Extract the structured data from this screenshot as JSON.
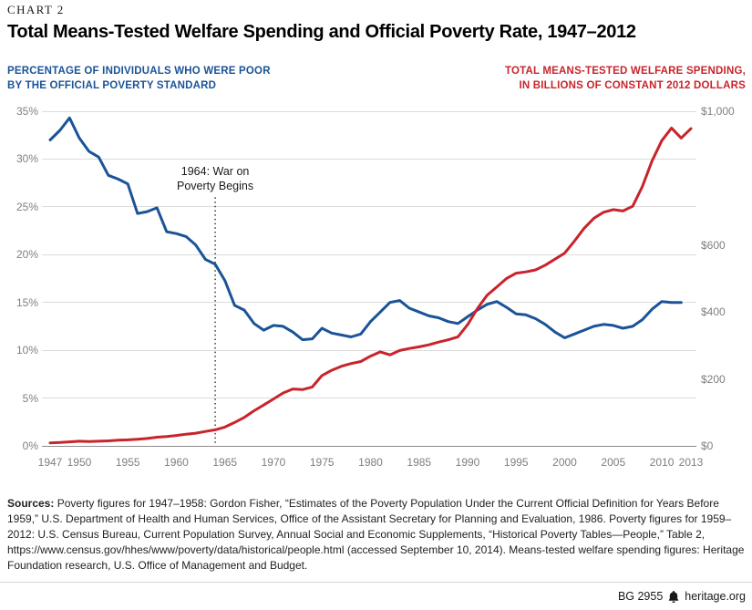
{
  "page": {
    "kicker": "CHART 2",
    "title": "Total Means-Tested Welfare Spending and Official Poverty Rate, 1947–2012",
    "sources_label": "Sources:",
    "sources_text": "Poverty figures for 1947–1958: Gordon Fisher, “Estimates of the Poverty Population Under the Current Official Definition for Years Before 1959,” U.S. Department of Health and Human Services, Office of the Assistant Secretary for Planning and Evaluation, 1986. Poverty figures for 1959–2012: U.S. Census Bureau, Current Population Survey, Annual Social and Economic Supplements, “Historical Poverty Tables—People,” Table 2, https://www.census.gov/hhes/www/poverty/data/historical/people.html (accessed September 10, 2014). Means-tested welfare spending figures: Heritage Foundation research, U.S. Office of Management and Budget.",
    "footer": {
      "doc_id": "BG 2955",
      "site": "heritage.org",
      "logo_icon": "heritage-bell-icon"
    }
  },
  "chart_data": {
    "type": "line",
    "title": "Total Means-Tested Welfare Spending and Official Poverty Rate, 1947–2012",
    "grid": true,
    "legend_position": "axis-colored-titles",
    "left_axis": {
      "title": "PERCENTAGE OF INDIVIDUALS WHO WERE POOR\nBY THE OFFICIAL POVERTY STANDARD",
      "min": 0,
      "max": 35,
      "color": "#1A5398",
      "ticks": [
        {
          "value": 35,
          "label": "35%"
        },
        {
          "value": 30,
          "label": "30%"
        },
        {
          "value": 25,
          "label": "25%"
        },
        {
          "value": 20,
          "label": "20%"
        },
        {
          "value": 15,
          "label": "15%"
        },
        {
          "value": 10,
          "label": "10%"
        },
        {
          "value": 5,
          "label": "5%"
        },
        {
          "value": 0,
          "label": "0%"
        }
      ]
    },
    "right_axis": {
      "title": "TOTAL MEANS-TESTED WELFARE SPENDING,\nIN BILLIONS OF CONSTANT 2012 DOLLARS",
      "min": 0,
      "max": 1000,
      "color": "#C8242B",
      "ticks": [
        {
          "value": 1000,
          "label": "$1,000"
        },
        {
          "value": 600,
          "label": "$600"
        },
        {
          "value": 400,
          "label": "$400"
        },
        {
          "value": 200,
          "label": "$200"
        },
        {
          "value": 0,
          "label": "$0"
        }
      ]
    },
    "x_axis": {
      "min": 1947,
      "max": 2013,
      "ticks": [
        1947,
        1950,
        1955,
        1960,
        1965,
        1970,
        1975,
        1980,
        1985,
        1990,
        1995,
        2000,
        2005,
        2010,
        2013
      ]
    },
    "annotation": {
      "year": 1964,
      "text": "1964: War on\nPoverty Begins",
      "line_top_value": 26
    },
    "series": [
      {
        "id": "poverty-rate",
        "name": "Percentage of individuals who were poor by the official poverty standard",
        "axis": "left",
        "unit": "percent",
        "color": "#1A5398",
        "start_year": 1947,
        "end_year": 2012,
        "values": [
          32.0,
          33.0,
          34.3,
          32.2,
          30.8,
          30.2,
          28.3,
          27.9,
          27.4,
          24.3,
          24.5,
          24.9,
          22.4,
          22.2,
          21.9,
          21.0,
          19.5,
          19.0,
          17.3,
          14.7,
          14.2,
          12.8,
          12.1,
          12.6,
          12.5,
          11.9,
          11.1,
          11.2,
          12.3,
          11.8,
          11.6,
          11.4,
          11.7,
          13.0,
          14.0,
          15.0,
          15.2,
          14.4,
          14.0,
          13.6,
          13.4,
          13.0,
          12.8,
          13.5,
          14.2,
          14.8,
          15.1,
          14.5,
          13.8,
          13.7,
          13.3,
          12.7,
          11.9,
          11.3,
          11.7,
          12.1,
          12.5,
          12.7,
          12.6,
          12.3,
          12.5,
          13.2,
          14.3,
          15.1,
          15.0,
          15.0
        ]
      },
      {
        "id": "welfare-spending",
        "name": "Total means-tested welfare spending, in billions of constant 2012 dollars",
        "axis": "right",
        "unit": "billions of 2012 dollars",
        "color": "#C8242B",
        "start_year": 1947,
        "end_year": 2013,
        "values": [
          9,
          10,
          12,
          14,
          13,
          14,
          15,
          17,
          18,
          20,
          22,
          26,
          28,
          31,
          35,
          38,
          43,
          48,
          56,
          70,
          85,
          105,
          122,
          140,
          158,
          170,
          168,
          176,
          210,
          226,
          238,
          246,
          252,
          268,
          281,
          272,
          285,
          291,
          296,
          302,
          310,
          317,
          326,
          362,
          410,
          450,
          475,
          500,
          516,
          520,
          526,
          540,
          558,
          576,
          612,
          650,
          680,
          698,
          706,
          702,
          716,
          775,
          852,
          912,
          950,
          920,
          948
        ]
      }
    ]
  }
}
